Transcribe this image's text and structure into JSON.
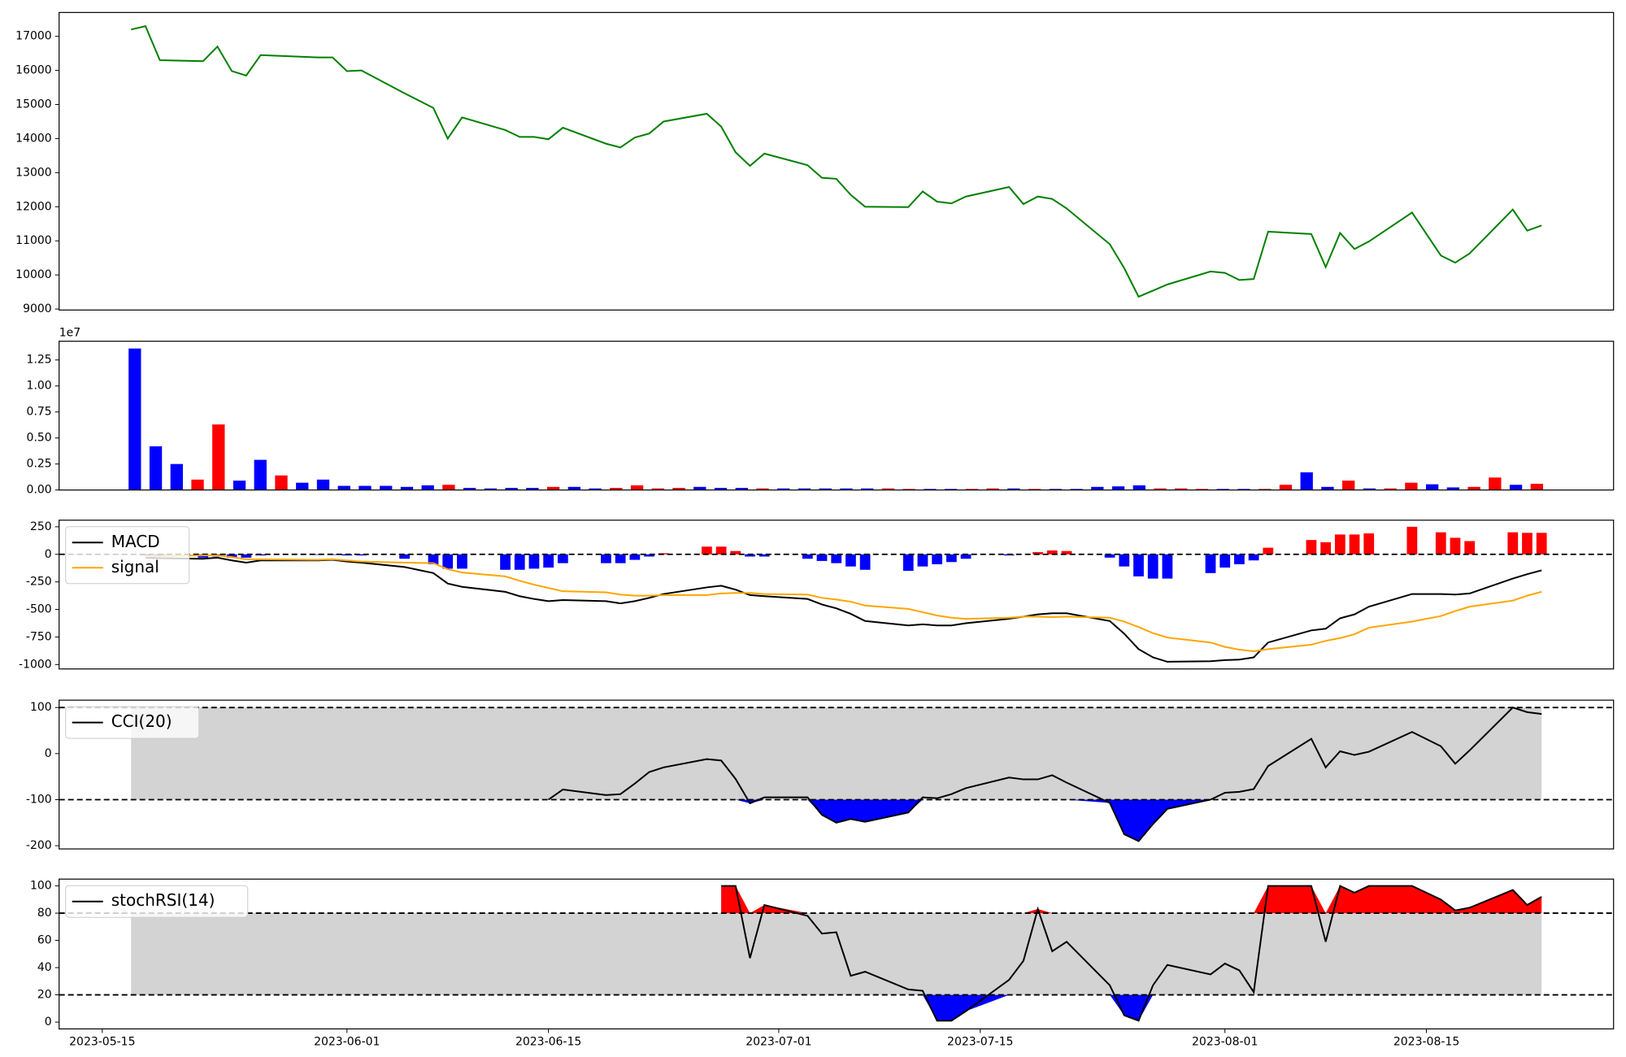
{
  "chart_data": [
    {
      "type": "line",
      "x": [
        "2023-05-17",
        "2023-05-18",
        "2023-05-19",
        "2023-05-22",
        "2023-05-23",
        "2023-05-24",
        "2023-05-25",
        "2023-05-26",
        "2023-05-30",
        "2023-05-31",
        "2023-06-01",
        "2023-06-02",
        "2023-06-05",
        "2023-06-07",
        "2023-06-08",
        "2023-06-09",
        "2023-06-12",
        "2023-06-13",
        "2023-06-14",
        "2023-06-15",
        "2023-06-16",
        "2023-06-19",
        "2023-06-20",
        "2023-06-21",
        "2023-06-22",
        "2023-06-23",
        "2023-06-26",
        "2023-06-27",
        "2023-06-28",
        "2023-06-29",
        "2023-06-30",
        "2023-07-03",
        "2023-07-04",
        "2023-07-05",
        "2023-07-06",
        "2023-07-07",
        "2023-07-10",
        "2023-07-11",
        "2023-07-12",
        "2023-07-13",
        "2023-07-14",
        "2023-07-17",
        "2023-07-18",
        "2023-07-19",
        "2023-07-20",
        "2023-07-21",
        "2023-07-24",
        "2023-07-25",
        "2023-07-26",
        "2023-07-27",
        "2023-07-28",
        "2023-07-31",
        "2023-08-01",
        "2023-08-02",
        "2023-08-03",
        "2023-08-04",
        "2023-08-07",
        "2023-08-08",
        "2023-08-09",
        "2023-08-10",
        "2023-08-11",
        "2023-08-14",
        "2023-08-16",
        "2023-08-17",
        "2023-08-18",
        "2023-08-21",
        "2023-08-22",
        "2023-08-23"
      ],
      "values": [
        17200,
        17300,
        16300,
        16270,
        16700,
        15980,
        15850,
        16450,
        16380,
        16380,
        15980,
        16000,
        15330,
        14900,
        14000,
        14620,
        14250,
        14050,
        14050,
        13980,
        14320,
        13850,
        13740,
        14030,
        14150,
        14500,
        14730,
        14350,
        13600,
        13200,
        13560,
        13220,
        12850,
        12820,
        12350,
        12000,
        11990,
        12450,
        12150,
        12100,
        12300,
        12580,
        12080,
        12300,
        12230,
        11950,
        10900,
        10200,
        9360,
        9540,
        9720,
        10100,
        10060,
        9850,
        9880,
        11270,
        11200,
        10230,
        11230,
        10760,
        10980,
        11830,
        10570,
        10360,
        10630,
        11920,
        11300,
        11450
      ],
      "color": "#008000",
      "xlim": [
        "2023-05-12",
        "2023-08-28"
      ],
      "ylim": [
        8970,
        17700
      ],
      "yticks": [
        9000,
        10000,
        11000,
        12000,
        13000,
        14000,
        15000,
        16000,
        17000
      ]
    },
    {
      "type": "bar",
      "y_offset_label": "1e7",
      "values": [
        1.36,
        0.42,
        0.25,
        0.1,
        0.63,
        0.09,
        0.29,
        0.14,
        0.07,
        0.1,
        0.04,
        0.04,
        0.04,
        0.03,
        0.045,
        0.05,
        0.02,
        0.015,
        0.02,
        0.02,
        0.03,
        0.03,
        0.015,
        0.02,
        0.045,
        0.015,
        0.02,
        0.03,
        0.02,
        0.02,
        0.015,
        0.015,
        0.015,
        0.015,
        0.015,
        0.015,
        0.015,
        0.01,
        0.01,
        0.01,
        0.01,
        0.015,
        0.015,
        0.01,
        0.01,
        0.01,
        0.03,
        0.035,
        0.045,
        0.015,
        0.015,
        0.01,
        0.01,
        0.01,
        0.01,
        0.05,
        0.17,
        0.03,
        0.09,
        0.015,
        0.015,
        0.07,
        0.055,
        0.025,
        0.03,
        0.12,
        0.05,
        0.06
      ],
      "colors": [
        "#0000ff",
        "#0000ff",
        "#0000ff",
        "#ff0000",
        "#ff0000",
        "#0000ff",
        "#0000ff",
        "#ff0000",
        "#0000ff",
        "#0000ff",
        "#0000ff",
        "#0000ff",
        "#0000ff",
        "#0000ff",
        "#0000ff",
        "#ff0000",
        "#0000ff",
        "#0000ff",
        "#0000ff",
        "#0000ff",
        "#ff0000",
        "#0000ff",
        "#0000ff",
        "#ff0000",
        "#ff0000",
        "#ff0000",
        "#ff0000",
        "#0000ff",
        "#0000ff",
        "#0000ff",
        "#ff0000",
        "#0000ff",
        "#0000ff",
        "#0000ff",
        "#0000ff",
        "#0000ff",
        "#ff0000",
        "#ff0000",
        "#0000ff",
        "#0000ff",
        "#ff0000",
        "#ff0000",
        "#0000ff",
        "#ff0000",
        "#0000ff",
        "#0000ff",
        "#0000ff",
        "#0000ff",
        "#0000ff",
        "#ff0000",
        "#ff0000",
        "#ff0000",
        "#0000ff",
        "#0000ff",
        "#ff0000",
        "#ff0000",
        "#0000ff",
        "#0000ff",
        "#ff0000",
        "#0000ff",
        "#ff0000",
        "#ff0000",
        "#0000ff",
        "#0000ff",
        "#ff0000",
        "#ff0000",
        "#0000ff",
        "#ff0000"
      ],
      "ylim": [
        0,
        1.43
      ],
      "yticks": [
        {
          "value": 0,
          "label": "0.00"
        },
        {
          "value": 0.25,
          "label": "0.25"
        },
        {
          "value": 0.5,
          "label": "0.50"
        },
        {
          "value": 0.75,
          "label": "0.75"
        },
        {
          "value": 1,
          "label": "1.00"
        },
        {
          "value": 1.25,
          "label": "1.25"
        }
      ]
    },
    {
      "type": "line",
      "x": [
        "2023-05-17",
        "2023-05-18",
        "2023-05-19",
        "2023-05-22",
        "2023-05-23",
        "2023-05-24",
        "2023-05-25",
        "2023-05-26",
        "2023-05-30",
        "2023-05-31",
        "2023-06-01",
        "2023-06-02",
        "2023-06-05",
        "2023-06-07",
        "2023-06-08",
        "2023-06-09",
        "2023-06-12",
        "2023-06-13",
        "2023-06-14",
        "2023-06-15",
        "2023-06-16",
        "2023-06-19",
        "2023-06-20",
        "2023-06-21",
        "2023-06-22",
        "2023-06-23",
        "2023-06-26",
        "2023-06-27",
        "2023-06-28",
        "2023-06-29",
        "2023-06-30",
        "2023-07-03",
        "2023-07-04",
        "2023-07-05",
        "2023-07-06",
        "2023-07-07",
        "2023-07-10",
        "2023-07-11",
        "2023-07-12",
        "2023-07-13",
        "2023-07-14",
        "2023-07-17",
        "2023-07-18",
        "2023-07-19",
        "2023-07-20",
        "2023-07-21",
        "2023-07-24",
        "2023-07-25",
        "2023-07-26",
        "2023-07-27",
        "2023-07-28",
        "2023-07-31",
        "2023-08-01",
        "2023-08-02",
        "2023-08-03",
        "2023-08-04",
        "2023-08-07",
        "2023-08-08",
        "2023-08-09",
        "2023-08-10",
        "2023-08-11",
        "2023-08-14",
        "2023-08-16",
        "2023-08-17",
        "2023-08-18",
        "2023-08-21",
        "2023-08-22",
        "2023-08-23"
      ],
      "series": [
        {
          "name": "MACD",
          "color": "#000000",
          "values": [
            null,
            -30,
            -35,
            -40,
            -30,
            -55,
            -75,
            -55,
            -55,
            -50,
            -65,
            -75,
            -115,
            -170,
            -265,
            -295,
            -340,
            -380,
            -405,
            -425,
            -415,
            -425,
            -445,
            -425,
            -395,
            -360,
            -300,
            -285,
            -320,
            -370,
            -380,
            -405,
            -455,
            -490,
            -540,
            -605,
            -645,
            -635,
            -645,
            -645,
            -625,
            -585,
            -565,
            -545,
            -535,
            -535,
            -605,
            -720,
            -860,
            -935,
            -975,
            -970,
            -960,
            -955,
            -935,
            -800,
            -690,
            -675,
            -580,
            -545,
            -475,
            -360,
            -360,
            -365,
            -355,
            -220,
            -180,
            -145
          ]
        },
        {
          "name": "signal",
          "color": "#ffa500",
          "values": [
            null,
            -20,
            -15,
            -10,
            -10,
            -25,
            -45,
            -45,
            -50,
            -45,
            -55,
            -65,
            -75,
            -80,
            -135,
            -165,
            -200,
            -240,
            -275,
            -305,
            -335,
            -345,
            -365,
            -375,
            -375,
            -370,
            -370,
            -355,
            -350,
            -350,
            -360,
            -365,
            -395,
            -410,
            -430,
            -465,
            -495,
            -525,
            -555,
            -575,
            -585,
            -575,
            -565,
            -565,
            -570,
            -565,
            -575,
            -610,
            -660,
            -715,
            -755,
            -800,
            -840,
            -865,
            -880,
            -860,
            -820,
            -785,
            -760,
            -725,
            -665,
            -610,
            -560,
            -515,
            -475,
            -420,
            -375,
            -340
          ]
        }
      ],
      "bars": {
        "values": [
          null,
          -10,
          -20,
          -30,
          -20,
          -30,
          -30,
          -10,
          -5,
          -5,
          -10,
          -10,
          -40,
          -90,
          -130,
          -130,
          -140,
          -140,
          -130,
          -120,
          -80,
          -80,
          -80,
          -50,
          -20,
          10,
          70,
          70,
          30,
          -20,
          -20,
          -40,
          -60,
          -80,
          -110,
          -140,
          -150,
          -110,
          -90,
          -70,
          -40,
          -10,
          0,
          20,
          35,
          30,
          -30,
          -110,
          -200,
          -220,
          -220,
          -170,
          -120,
          -90,
          -55,
          60,
          130,
          110,
          180,
          180,
          190,
          250,
          200,
          150,
          120,
          200,
          195,
          195
        ],
        "up_color": "#ff0000",
        "down_color": "#0000ff"
      },
      "levels": [
        0
      ],
      "legend": "upper left",
      "xlim": [
        "2023-05-12",
        "2023-08-28"
      ],
      "ylim": [
        -1040,
        310
      ],
      "yticks": [
        -1000,
        -750,
        -500,
        -250,
        0,
        250
      ]
    },
    {
      "type": "line",
      "x": [
        "2023-05-17",
        "2023-05-18",
        "2023-05-19",
        "2023-05-22",
        "2023-05-23",
        "2023-05-24",
        "2023-05-25",
        "2023-05-26",
        "2023-05-30",
        "2023-05-31",
        "2023-06-01",
        "2023-06-02",
        "2023-06-05",
        "2023-06-07",
        "2023-06-08",
        "2023-06-09",
        "2023-06-12",
        "2023-06-13",
        "2023-06-14",
        "2023-06-15",
        "2023-06-16",
        "2023-06-19",
        "2023-06-20",
        "2023-06-21",
        "2023-06-22",
        "2023-06-23",
        "2023-06-26",
        "2023-06-27",
        "2023-06-28",
        "2023-06-29",
        "2023-06-30",
        "2023-07-03",
        "2023-07-04",
        "2023-07-05",
        "2023-07-06",
        "2023-07-07",
        "2023-07-10",
        "2023-07-11",
        "2023-07-12",
        "2023-07-13",
        "2023-07-14",
        "2023-07-17",
        "2023-07-18",
        "2023-07-19",
        "2023-07-20",
        "2023-07-21",
        "2023-07-24",
        "2023-07-25",
        "2023-07-26",
        "2023-07-27",
        "2023-07-28",
        "2023-07-31",
        "2023-08-01",
        "2023-08-02",
        "2023-08-03",
        "2023-08-04",
        "2023-08-07",
        "2023-08-08",
        "2023-08-09",
        "2023-08-10",
        "2023-08-11",
        "2023-08-14",
        "2023-08-16",
        "2023-08-17",
        "2023-08-18",
        "2023-08-21",
        "2023-08-22",
        "2023-08-23"
      ],
      "series": [
        {
          "name": "CCI(20)",
          "color": "#000000",
          "values": [
            null,
            null,
            null,
            null,
            null,
            null,
            null,
            null,
            null,
            null,
            null,
            null,
            null,
            null,
            null,
            null,
            null,
            null,
            null,
            -100,
            -78,
            -90,
            -88,
            -65,
            -40,
            -30,
            -12,
            -15,
            -55,
            -108,
            -95,
            -95,
            -133,
            -150,
            -142,
            -148,
            -128,
            -95,
            -97,
            -88,
            -75,
            -52,
            -56,
            -56,
            -47,
            -63,
            -107,
            -175,
            -190,
            -153,
            -120,
            -100,
            -85,
            -83,
            -77,
            -27,
            32,
            -30,
            5,
            -3,
            4,
            47,
            16,
            -22,
            7,
            100,
            90,
            86
          ]
        }
      ],
      "levels": [
        -100,
        100
      ],
      "band_color": "#d3d3d3",
      "fill_below_color": "#0000ff",
      "legend": "upper left",
      "xlim": [
        "2023-05-12",
        "2023-08-28"
      ],
      "ylim": [
        -207,
        116
      ],
      "yticks": [
        -200,
        -100,
        0,
        100
      ]
    },
    {
      "type": "line",
      "x": [
        "2023-05-17",
        "2023-05-18",
        "2023-05-19",
        "2023-05-22",
        "2023-05-23",
        "2023-05-24",
        "2023-05-25",
        "2023-05-26",
        "2023-05-30",
        "2023-05-31",
        "2023-06-01",
        "2023-06-02",
        "2023-06-05",
        "2023-06-07",
        "2023-06-08",
        "2023-06-09",
        "2023-06-12",
        "2023-06-13",
        "2023-06-14",
        "2023-06-15",
        "2023-06-16",
        "2023-06-19",
        "2023-06-20",
        "2023-06-21",
        "2023-06-22",
        "2023-06-23",
        "2023-06-26",
        "2023-06-27",
        "2023-06-28",
        "2023-06-29",
        "2023-06-30",
        "2023-07-03",
        "2023-07-04",
        "2023-07-05",
        "2023-07-06",
        "2023-07-07",
        "2023-07-10",
        "2023-07-11",
        "2023-07-12",
        "2023-07-13",
        "2023-07-14",
        "2023-07-17",
        "2023-07-18",
        "2023-07-19",
        "2023-07-20",
        "2023-07-21",
        "2023-07-24",
        "2023-07-25",
        "2023-07-26",
        "2023-07-27",
        "2023-07-28",
        "2023-07-31",
        "2023-08-01",
        "2023-08-02",
        "2023-08-03",
        "2023-08-04",
        "2023-08-07",
        "2023-08-08",
        "2023-08-09",
        "2023-08-10",
        "2023-08-11",
        "2023-08-14",
        "2023-08-16",
        "2023-08-17",
        "2023-08-18",
        "2023-08-21",
        "2023-08-22",
        "2023-08-23"
      ],
      "series": [
        {
          "name": "stochRSI(14)",
          "color": "#000000",
          "values": [
            null,
            null,
            null,
            null,
            null,
            null,
            null,
            null,
            null,
            null,
            null,
            null,
            null,
            null,
            null,
            null,
            null,
            null,
            null,
            null,
            null,
            null,
            null,
            null,
            null,
            null,
            null,
            100,
            100,
            47,
            86,
            78,
            65,
            66,
            34,
            37,
            24,
            23,
            1,
            1,
            8,
            31,
            45,
            83,
            52,
            59,
            27,
            5,
            1,
            27,
            42,
            35,
            43,
            38,
            22,
            100,
            100,
            59,
            100,
            95,
            100,
            100,
            90,
            82,
            84,
            97,
            86,
            92
          ]
        }
      ],
      "levels": [
        20,
        80
      ],
      "band_color": "#d3d3d3",
      "fill_above_color": "#ff0000",
      "fill_below_color": "#0000ff",
      "legend": "upper left",
      "xlim": [
        "2023-05-12",
        "2023-08-28"
      ],
      "ylim": [
        -5,
        105
      ],
      "yticks": [
        0,
        20,
        40,
        60,
        80,
        100
      ],
      "xticks": [
        "2023-05-15",
        "2023-06-01",
        "2023-06-15",
        "2023-07-01",
        "2023-07-15",
        "2023-08-01",
        "2023-08-15"
      ]
    }
  ]
}
